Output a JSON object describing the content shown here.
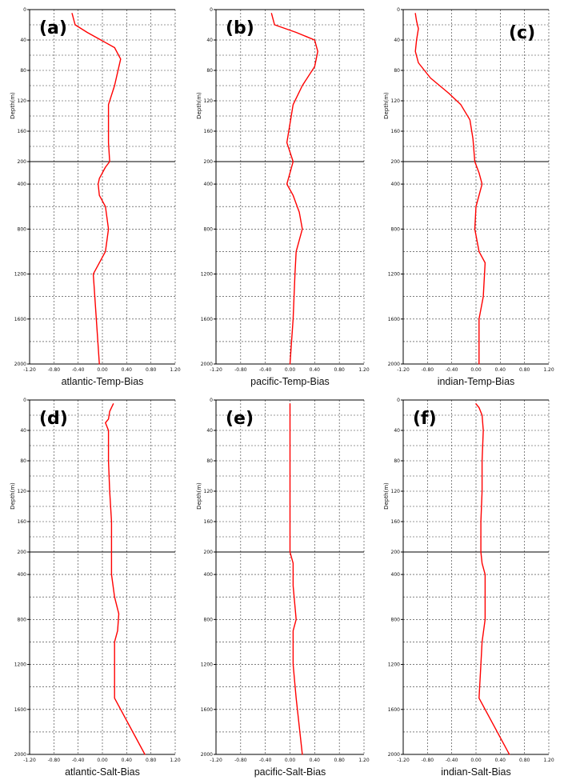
{
  "colors": {
    "line": "#ff0000",
    "grid": "#333333",
    "axis": "#000000"
  },
  "y_axis_label": "Depth(m)",
  "chart_data": [
    {
      "type": "line",
      "letter": "(a)",
      "title": "atlantic-Temp-Bias",
      "xlim": [
        -1.2,
        1.2
      ],
      "ylim": [
        0,
        2000
      ],
      "grid": true,
      "x_tick_labels": [
        "-1.20",
        "-0.80",
        "-0.40",
        "0.00",
        "0.40",
        "0.80",
        "1.20"
      ],
      "y_tick_labels": [
        "0",
        "40",
        "80",
        "120",
        "160",
        "200",
        "400",
        "800",
        "1200",
        "1600",
        "2000"
      ],
      "y_scale": "piecewise: 0-200 m upper section, 200-2000 m lower section",
      "series": [
        {
          "points": [
            [
              -0.5,
              5
            ],
            [
              -0.45,
              20
            ],
            [
              -0.25,
              30
            ],
            [
              0.2,
              50
            ],
            [
              0.3,
              65
            ],
            [
              0.2,
              100
            ],
            [
              0.1,
              125
            ],
            [
              0.1,
              175
            ],
            [
              0.12,
              200
            ],
            [
              0.05,
              250
            ],
            [
              -0.05,
              350
            ],
            [
              -0.07,
              400
            ],
            [
              -0.05,
              500
            ],
            [
              0.05,
              600
            ],
            [
              0.1,
              800
            ],
            [
              0.05,
              1000
            ],
            [
              -0.15,
              1200
            ],
            [
              -0.1,
              1600
            ],
            [
              -0.05,
              2000
            ]
          ]
        }
      ]
    },
    {
      "type": "line",
      "letter": "(b)",
      "title": "pacific-Temp-Bias",
      "xlim": [
        -1.2,
        1.2
      ],
      "ylim": [
        0,
        2000
      ],
      "grid": true,
      "x_tick_labels": [
        "-1.20",
        "-0.80",
        "-0.40",
        "0.00",
        "0.40",
        "0.80",
        "1.20"
      ],
      "y_tick_labels": [
        "0",
        "40",
        "80",
        "120",
        "160",
        "200",
        "400",
        "800",
        "1200",
        "1600",
        "2000"
      ],
      "y_scale": "piecewise: 0-200 m upper section, 200-2000 m lower section",
      "series": [
        {
          "points": [
            [
              -0.3,
              5
            ],
            [
              -0.25,
              20
            ],
            [
              0.1,
              30
            ],
            [
              0.4,
              40
            ],
            [
              0.45,
              55
            ],
            [
              0.4,
              75
            ],
            [
              0.2,
              100
            ],
            [
              0.05,
              125
            ],
            [
              0.0,
              150
            ],
            [
              -0.05,
              175
            ],
            [
              0.05,
              200
            ],
            [
              0.0,
              300
            ],
            [
              -0.05,
              400
            ],
            [
              0.05,
              500
            ],
            [
              0.15,
              650
            ],
            [
              0.2,
              800
            ],
            [
              0.1,
              1000
            ],
            [
              0.08,
              1200
            ],
            [
              0.05,
              1600
            ],
            [
              0.0,
              2000
            ]
          ]
        }
      ]
    },
    {
      "type": "line",
      "letter": "(c)",
      "title": "indian-Temp-Bias",
      "xlim": [
        -1.2,
        1.2
      ],
      "ylim": [
        0,
        2000
      ],
      "grid": true,
      "x_tick_labels": [
        "-1.20",
        "-0.80",
        "-0.40",
        "0.00",
        "0.40",
        "0.80",
        "1.20"
      ],
      "y_tick_labels": [
        "0",
        "40",
        "80",
        "120",
        "160",
        "200",
        "400",
        "800",
        "1200",
        "1600",
        "2000"
      ],
      "y_scale": "piecewise: 0-200 m upper section, 200-2000 m lower section",
      "series": [
        {
          "points": [
            [
              -1.0,
              5
            ],
            [
              -0.98,
              15
            ],
            [
              -0.95,
              25
            ],
            [
              -0.98,
              40
            ],
            [
              -1.0,
              55
            ],
            [
              -0.95,
              70
            ],
            [
              -0.75,
              90
            ],
            [
              -0.45,
              110
            ],
            [
              -0.25,
              125
            ],
            [
              -0.1,
              145
            ],
            [
              -0.05,
              170
            ],
            [
              -0.02,
              200
            ],
            [
              0.05,
              300
            ],
            [
              0.1,
              400
            ],
            [
              0.0,
              600
            ],
            [
              -0.02,
              800
            ],
            [
              0.05,
              1000
            ],
            [
              0.15,
              1100
            ],
            [
              0.12,
              1400
            ],
            [
              0.05,
              1600
            ],
            [
              0.05,
              2000
            ]
          ]
        }
      ]
    },
    {
      "type": "line",
      "letter": "(d)",
      "title": "atlantic-Salt-Bias",
      "xlim": [
        -1.2,
        1.2
      ],
      "ylim": [
        0,
        2000
      ],
      "grid": true,
      "x_tick_labels": [
        "-1.20",
        "-0.80",
        "-0.40",
        "0.00",
        "0.40",
        "0.80",
        "1.20"
      ],
      "y_tick_labels": [
        "0",
        "40",
        "80",
        "120",
        "160",
        "200",
        "400",
        "800",
        "1200",
        "1600",
        "2000"
      ],
      "y_scale": "piecewise: 0-200 m upper section, 200-2000 m lower section",
      "series": [
        {
          "points": [
            [
              0.18,
              5
            ],
            [
              0.12,
              15
            ],
            [
              0.1,
              25
            ],
            [
              0.05,
              30
            ],
            [
              0.1,
              40
            ],
            [
              0.1,
              80
            ],
            [
              0.12,
              120
            ],
            [
              0.15,
              160
            ],
            [
              0.15,
              200
            ],
            [
              0.15,
              300
            ],
            [
              0.15,
              400
            ],
            [
              0.2,
              600
            ],
            [
              0.27,
              750
            ],
            [
              0.25,
              900
            ],
            [
              0.2,
              1000
            ],
            [
              0.2,
              1200
            ],
            [
              0.2,
              1500
            ],
            [
              0.7,
              2000
            ]
          ]
        }
      ]
    },
    {
      "type": "line",
      "letter": "(e)",
      "title": "pacific-Salt-Bias",
      "xlim": [
        -1.2,
        1.2
      ],
      "ylim": [
        0,
        2000
      ],
      "grid": true,
      "x_tick_labels": [
        "-1.20",
        "-0.80",
        "-0.40",
        "0.00",
        "0.40",
        "0.80",
        "1.20"
      ],
      "y_tick_labels": [
        "0",
        "40",
        "80",
        "120",
        "160",
        "200",
        "400",
        "800",
        "1200",
        "1600",
        "2000"
      ],
      "y_scale": "piecewise: 0-200 m upper section, 200-2000 m lower section",
      "series": [
        {
          "points": [
            [
              0.0,
              5
            ],
            [
              0.0,
              40
            ],
            [
              0.0,
              80
            ],
            [
              0.0,
              120
            ],
            [
              0.0,
              160
            ],
            [
              0.0,
              200
            ],
            [
              0.05,
              300
            ],
            [
              0.05,
              500
            ],
            [
              0.1,
              800
            ],
            [
              0.05,
              900
            ],
            [
              0.05,
              1200
            ],
            [
              0.1,
              1500
            ],
            [
              0.2,
              2000
            ]
          ]
        }
      ]
    },
    {
      "type": "line",
      "letter": "(f)",
      "title": "indian-Salt-Bias",
      "xlim": [
        -1.2,
        1.2
      ],
      "ylim": [
        0,
        2000
      ],
      "grid": true,
      "x_tick_labels": [
        "-1.20",
        "-0.80",
        "-0.40",
        "0.00",
        "0.40",
        "0.80",
        "1.20"
      ],
      "y_tick_labels": [
        "0",
        "40",
        "80",
        "120",
        "160",
        "200",
        "400",
        "800",
        "1200",
        "1600",
        "2000"
      ],
      "y_scale": "piecewise: 0-200 m upper section, 200-2000 m lower section",
      "series": [
        {
          "points": [
            [
              0.0,
              5
            ],
            [
              0.05,
              10
            ],
            [
              0.1,
              20
            ],
            [
              0.12,
              40
            ],
            [
              0.1,
              80
            ],
            [
              0.1,
              120
            ],
            [
              0.08,
              160
            ],
            [
              0.08,
              200
            ],
            [
              0.1,
              300
            ],
            [
              0.15,
              400
            ],
            [
              0.15,
              600
            ],
            [
              0.15,
              800
            ],
            [
              0.1,
              1000
            ],
            [
              0.08,
              1200
            ],
            [
              0.05,
              1500
            ],
            [
              0.55,
              2000
            ]
          ]
        }
      ]
    }
  ]
}
